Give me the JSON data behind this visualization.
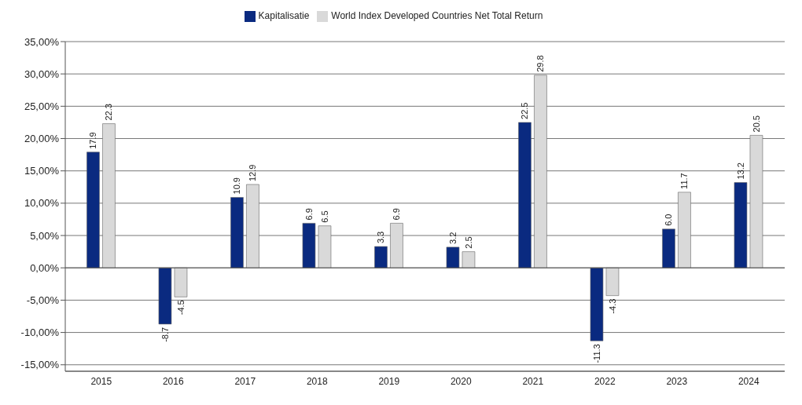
{
  "chart_data": {
    "type": "bar",
    "categories": [
      "2015",
      "2016",
      "2017",
      "2018",
      "2019",
      "2020",
      "2021",
      "2022",
      "2023",
      "2024"
    ],
    "series": [
      {
        "name": "Kapitalisatie",
        "color": "#0a2a80",
        "values": [
          17.9,
          -8.7,
          10.9,
          6.9,
          3.3,
          3.2,
          22.5,
          -11.3,
          6.0,
          13.2
        ],
        "value_labels": [
          "17.9",
          "-8.7",
          "10.9",
          "6.9",
          "3.3",
          "3.2",
          "22.5",
          "-11.3",
          "6.0",
          "13.2"
        ]
      },
      {
        "name": "World Index Developed Countries Net Total Return",
        "color": "#d9d9d9",
        "values": [
          22.3,
          -4.5,
          12.9,
          6.5,
          6.9,
          2.5,
          29.8,
          -4.3,
          11.7,
          20.5
        ],
        "value_labels": [
          "22.3",
          "-4.5",
          "12.9",
          "6.5",
          "6.9",
          "2.5",
          "29.8",
          "-4.3",
          "11.7",
          "20.5"
        ]
      }
    ],
    "ylim": [
      -16,
      35
    ],
    "yticks": [
      {
        "value": -15,
        "label": "-15,00%"
      },
      {
        "value": -10,
        "label": "-10,00%"
      },
      {
        "value": -5,
        "label": "-5,00%"
      },
      {
        "value": 0,
        "label": "0,00%"
      },
      {
        "value": 5,
        "label": "5,00%"
      },
      {
        "value": 10,
        "label": "10,00%"
      },
      {
        "value": 15,
        "label": "15,00%"
      },
      {
        "value": 20,
        "label": "20,00%"
      },
      {
        "value": 25,
        "label": "25,00%"
      },
      {
        "value": 30,
        "label": "30,00%"
      },
      {
        "value": 35,
        "label": "35,00%"
      }
    ],
    "grid": "y",
    "legend": "top"
  }
}
